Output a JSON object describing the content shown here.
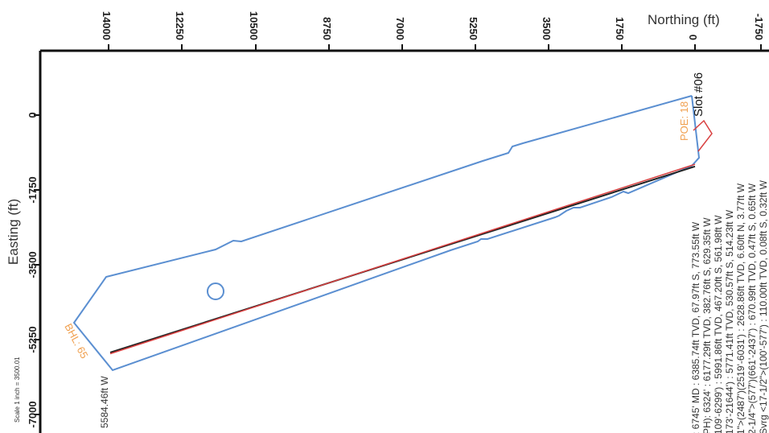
{
  "chart_data": {
    "type": "line",
    "xlabel": "Northing (ft)",
    "ylabel": "Easting (ft)",
    "scale_note": "Scale 1 inch = 3500.01",
    "x_ticks": [
      "14000",
      "12250",
      "10500",
      "8750",
      "7000",
      "5250",
      "3500",
      "1750",
      "0",
      "-1750"
    ],
    "y_ticks": [
      "0",
      "-1750",
      "-3500",
      "-5250",
      "-7000"
    ],
    "slot_label": "Slot #06",
    "poe_label": "POE: 18",
    "bhl_label": "BHL: 65",
    "bhl_offset_label": "5584.46ft W",
    "info_lines": [
      ": 6745' MD : 6385.74ft TVD, 67.97ft S, 773.55ft W",
      "PH): 6324' : 6177.29ft TVD, 382.76ft S, 629.35ft W",
      "109'-6299') : 5991.86ft TVD, 467.20ft S, 561.98ft W",
      "173'-21644') : 5771.41ft TVD, 530.57ft S, 514.23ft W",
      "1\">(2487')(2519'-6031') : 2628.86ft TVD, 6.60ft N, 3.77ft W",
      "2-1/4\">(577')(661'-2437') : 670.99ft TVD, 0.47ft S, 0.65ft W",
      "Svrg <17-1/2\">(100'-577') : 110.00ft TVD, 0.08ft S, 0.32ft W"
    ],
    "series": [
      {
        "color": "#222222",
        "points": [
          [
            0,
            -1200
          ],
          [
            13950,
            -5550
          ]
        ]
      },
      {
        "color": "#d94040",
        "points": [
          [
            0,
            -1150
          ],
          [
            13950,
            -5580
          ]
        ]
      }
    ],
    "colors": {
      "boundary": "#5b8fd1",
      "well": "#222222",
      "plan": "#d94040",
      "annotation": "#f0a050"
    }
  }
}
